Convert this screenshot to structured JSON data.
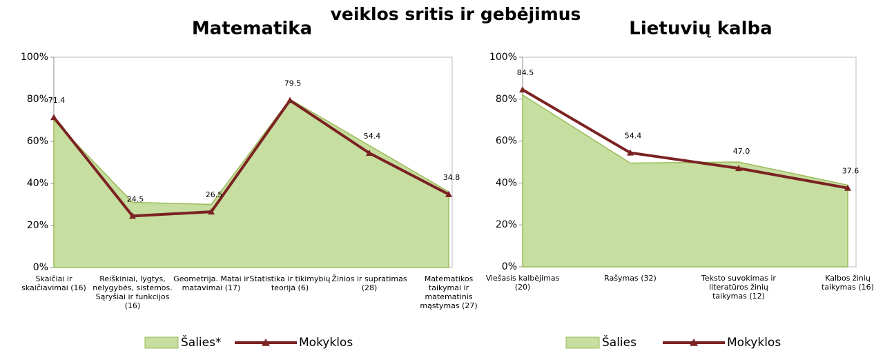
{
  "heading": "veiklos sritis ir gebėjimus",
  "chart_data": [
    {
      "type": "line",
      "title": "Matematika",
      "categories": [
        "Skaičiai ir skaičiavimai (16)",
        "Reiškiniai, lygtys, nelygybės, sistemos. Sąryšiai ir funkcijos (16)",
        "Geometrija. Matai ir matavimai (17)",
        "Statistika ir tikimybių teorija (6)",
        "Žinios ir supratimas (28)",
        "Matematikos taikymai ir matematinis mąstymas (27)"
      ],
      "series": [
        {
          "name": "Šalies*",
          "kind": "area",
          "color": "#c6dea0",
          "values": [
            70,
            31,
            30,
            80,
            58,
            36
          ]
        },
        {
          "name": "Mokyklos",
          "kind": "line",
          "color": "#7b2222",
          "values": [
            71.4,
            24.5,
            26.5,
            79.5,
            54.4,
            34.8
          ],
          "value_labels": [
            "71.4",
            "24.5",
            "26.5",
            "79.5",
            "54.4",
            "34.8"
          ]
        }
      ],
      "ylim": [
        0,
        100
      ],
      "yticks": [
        {
          "value": 0,
          "label": "0%"
        },
        {
          "value": 20,
          "label": "20%"
        },
        {
          "value": 40,
          "label": "40%"
        },
        {
          "value": 60,
          "label": "60%"
        },
        {
          "value": 80,
          "label": "80%"
        },
        {
          "value": 100,
          "label": "100%"
        }
      ],
      "grid": false
    },
    {
      "type": "line",
      "title": "Lietuvių kalba",
      "categories": [
        "Viešasis kalbėjimas (20)",
        "Rašymas (32)",
        "Teksto suvokimas ir literatūros žinių taikymas (12)",
        "Kalbos žinių taikymas (16)"
      ],
      "series": [
        {
          "name": "Šalies",
          "kind": "area",
          "color": "#c6dea0",
          "values": [
            82,
            49.5,
            50,
            39
          ]
        },
        {
          "name": "Mokyklos",
          "kind": "line",
          "color": "#7b2222",
          "values": [
            84.5,
            54.4,
            47.0,
            37.6
          ],
          "value_labels": [
            "84.5",
            "54.4",
            "47.0",
            "37.6"
          ]
        }
      ],
      "ylim": [
        0,
        100
      ],
      "yticks": [
        {
          "value": 0,
          "label": "0%"
        },
        {
          "value": 20,
          "label": "20%"
        },
        {
          "value": 40,
          "label": "40%"
        },
        {
          "value": 60,
          "label": "60%"
        },
        {
          "value": 80,
          "label": "80%"
        },
        {
          "value": 100,
          "label": "100%"
        }
      ],
      "grid": false
    }
  ]
}
